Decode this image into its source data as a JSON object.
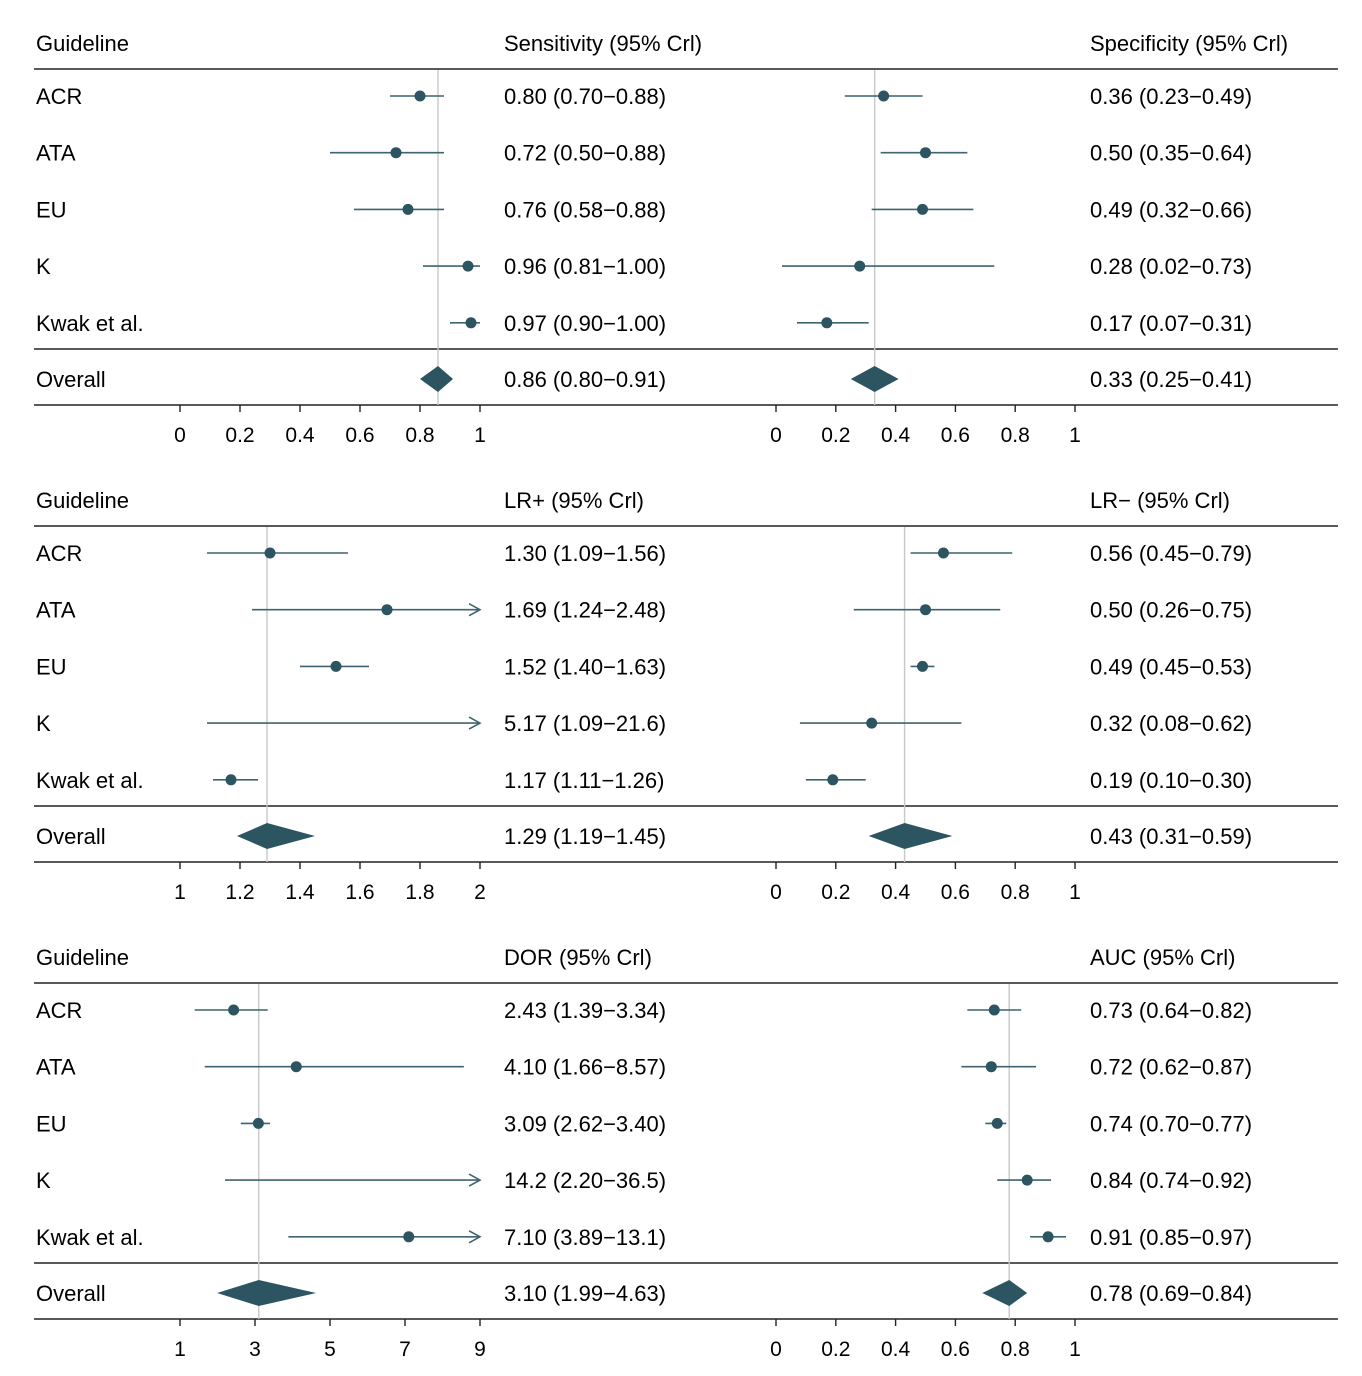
{
  "colors": {
    "mark": "#2c5461",
    "ci": "#3d6470",
    "refline": "#c8c8c8",
    "rule": "#222222"
  },
  "chart_data": [
    {
      "type": "forest",
      "row_header": "Guideline",
      "panels": [
        {
          "name": "sensitivity",
          "title": "Sensitivity (95% Crl)",
          "xlim": [
            0,
            1
          ],
          "ticks": [
            0,
            0.2,
            0.4,
            0.6,
            0.8,
            1
          ],
          "tick_labels": [
            "0",
            "0.2",
            "0.4",
            "0.6",
            "0.8",
            "1"
          ],
          "rows": [
            {
              "label": "ACR",
              "est": 0.8,
              "lo": 0.7,
              "hi": 0.88,
              "text": "0.80 (0.70−0.88)"
            },
            {
              "label": "ATA",
              "est": 0.72,
              "lo": 0.5,
              "hi": 0.88,
              "text": "0.72 (0.50−0.88)"
            },
            {
              "label": "EU",
              "est": 0.76,
              "lo": 0.58,
              "hi": 0.88,
              "text": "0.76 (0.58−0.88)"
            },
            {
              "label": "K",
              "est": 0.96,
              "lo": 0.81,
              "hi": 1.0,
              "text": "0.96 (0.81−1.00)"
            },
            {
              "label": "Kwak et al.",
              "est": 0.97,
              "lo": 0.9,
              "hi": 1.0,
              "text": "0.97 (0.90−1.00)"
            }
          ],
          "overall": {
            "label": "Overall",
            "est": 0.86,
            "lo": 0.8,
            "hi": 0.91,
            "text": "0.86 (0.80−0.91)"
          }
        },
        {
          "name": "specificity",
          "title": "Specificity (95% Crl)",
          "xlim": [
            0,
            1
          ],
          "ticks": [
            0,
            0.2,
            0.4,
            0.6,
            0.8,
            1
          ],
          "tick_labels": [
            "0",
            "0.2",
            "0.4",
            "0.6",
            "0.8",
            "1"
          ],
          "rows": [
            {
              "label": "ACR",
              "est": 0.36,
              "lo": 0.23,
              "hi": 0.49,
              "text": "0.36 (0.23−0.49)"
            },
            {
              "label": "ATA",
              "est": 0.5,
              "lo": 0.35,
              "hi": 0.64,
              "text": "0.50 (0.35−0.64)"
            },
            {
              "label": "EU",
              "est": 0.49,
              "lo": 0.32,
              "hi": 0.66,
              "text": "0.49 (0.32−0.66)"
            },
            {
              "label": "K",
              "est": 0.28,
              "lo": 0.02,
              "hi": 0.73,
              "text": "0.28 (0.02−0.73)"
            },
            {
              "label": "Kwak et al.",
              "est": 0.17,
              "lo": 0.07,
              "hi": 0.31,
              "text": "0.17 (0.07−0.31)"
            }
          ],
          "overall": {
            "label": "Overall",
            "est": 0.33,
            "lo": 0.25,
            "hi": 0.41,
            "text": "0.33 (0.25−0.41)"
          }
        },
        {
          "name": "lr-positive",
          "title": "LR+ (95% Crl)",
          "xlim": [
            1,
            2
          ],
          "ticks": [
            1,
            1.2,
            1.4,
            1.6,
            1.8,
            2
          ],
          "tick_labels": [
            "1",
            "1.2",
            "1.4",
            "1.6",
            "1.8",
            "2"
          ],
          "rows": [
            {
              "label": "ACR",
              "est": 1.3,
              "lo": 1.09,
              "hi": 1.56,
              "text": "1.30 (1.09−1.56)"
            },
            {
              "label": "ATA",
              "est": 1.69,
              "lo": 1.24,
              "hi": 2.48,
              "text": "1.69 (1.24−2.48)"
            },
            {
              "label": "EU",
              "est": 1.52,
              "lo": 1.4,
              "hi": 1.63,
              "text": "1.52 (1.40−1.63)"
            },
            {
              "label": "K",
              "est": 5.17,
              "lo": 1.09,
              "hi": 21.6,
              "text": "5.17 (1.09−21.6)"
            },
            {
              "label": "Kwak et al.",
              "est": 1.17,
              "lo": 1.11,
              "hi": 1.26,
              "text": "1.17 (1.11−1.26)"
            }
          ],
          "overall": {
            "label": "Overall",
            "est": 1.29,
            "lo": 1.19,
            "hi": 1.45,
            "text": "1.29 (1.19−1.45)"
          }
        },
        {
          "name": "lr-negative",
          "title": "LR− (95% Crl)",
          "xlim": [
            0,
            1
          ],
          "ticks": [
            0,
            0.2,
            0.4,
            0.6,
            0.8,
            1
          ],
          "tick_labels": [
            "0",
            "0.2",
            "0.4",
            "0.6",
            "0.8",
            "1"
          ],
          "rows": [
            {
              "label": "ACR",
              "est": 0.56,
              "lo": 0.45,
              "hi": 0.79,
              "text": "0.56 (0.45−0.79)"
            },
            {
              "label": "ATA",
              "est": 0.5,
              "lo": 0.26,
              "hi": 0.75,
              "text": "0.50 (0.26−0.75)"
            },
            {
              "label": "EU",
              "est": 0.49,
              "lo": 0.45,
              "hi": 0.53,
              "text": "0.49 (0.45−0.53)"
            },
            {
              "label": "K",
              "est": 0.32,
              "lo": 0.08,
              "hi": 0.62,
              "text": "0.32 (0.08−0.62)"
            },
            {
              "label": "Kwak et al.",
              "est": 0.19,
              "lo": 0.1,
              "hi": 0.3,
              "text": "0.19 (0.10−0.30)"
            }
          ],
          "overall": {
            "label": "Overall",
            "est": 0.43,
            "lo": 0.31,
            "hi": 0.59,
            "text": "0.43 (0.31−0.59)"
          }
        },
        {
          "name": "dor",
          "title": "DOR (95% Crl)",
          "xlim": [
            1,
            9
          ],
          "ticks": [
            1,
            3,
            5,
            7,
            9
          ],
          "tick_labels": [
            "1",
            "3",
            "5",
            "7",
            "9"
          ],
          "rows": [
            {
              "label": "ACR",
              "est": 2.43,
              "lo": 1.39,
              "hi": 3.34,
              "text": "2.43 (1.39−3.34)"
            },
            {
              "label": "ATA",
              "est": 4.1,
              "lo": 1.66,
              "hi": 8.57,
              "text": "4.10 (1.66−8.57)"
            },
            {
              "label": "EU",
              "est": 3.09,
              "lo": 2.62,
              "hi": 3.4,
              "text": "3.09 (2.62−3.40)"
            },
            {
              "label": "K",
              "est": 14.2,
              "lo": 2.2,
              "hi": 36.5,
              "text": "14.2 (2.20−36.5)"
            },
            {
              "label": "Kwak et al.",
              "est": 7.1,
              "lo": 3.89,
              "hi": 13.1,
              "text": "7.10 (3.89−13.1)"
            }
          ],
          "overall": {
            "label": "Overall",
            "est": 3.1,
            "lo": 1.99,
            "hi": 4.63,
            "text": "3.10 (1.99−4.63)"
          }
        },
        {
          "name": "auc",
          "title": "AUC (95% Crl)",
          "xlim": [
            0,
            1
          ],
          "ticks": [
            0,
            0.2,
            0.4,
            0.6,
            0.8,
            1
          ],
          "tick_labels": [
            "0",
            "0.2",
            "0.4",
            "0.6",
            "0.8",
            "1"
          ],
          "rows": [
            {
              "label": "ACR",
              "est": 0.73,
              "lo": 0.64,
              "hi": 0.82,
              "text": "0.73 (0.64−0.82)"
            },
            {
              "label": "ATA",
              "est": 0.72,
              "lo": 0.62,
              "hi": 0.87,
              "text": "0.72 (0.62−0.87)"
            },
            {
              "label": "EU",
              "est": 0.74,
              "lo": 0.7,
              "hi": 0.77,
              "text": "0.74 (0.70−0.77)"
            },
            {
              "label": "K",
              "est": 0.84,
              "lo": 0.74,
              "hi": 0.92,
              "text": "0.84 (0.74−0.92)"
            },
            {
              "label": "Kwak et al.",
              "est": 0.91,
              "lo": 0.85,
              "hi": 0.97,
              "text": "0.91 (0.85−0.97)"
            }
          ],
          "overall": {
            "label": "Overall",
            "est": 0.78,
            "lo": 0.69,
            "hi": 0.84,
            "text": "0.78 (0.69−0.84)"
          }
        }
      ]
    }
  ]
}
